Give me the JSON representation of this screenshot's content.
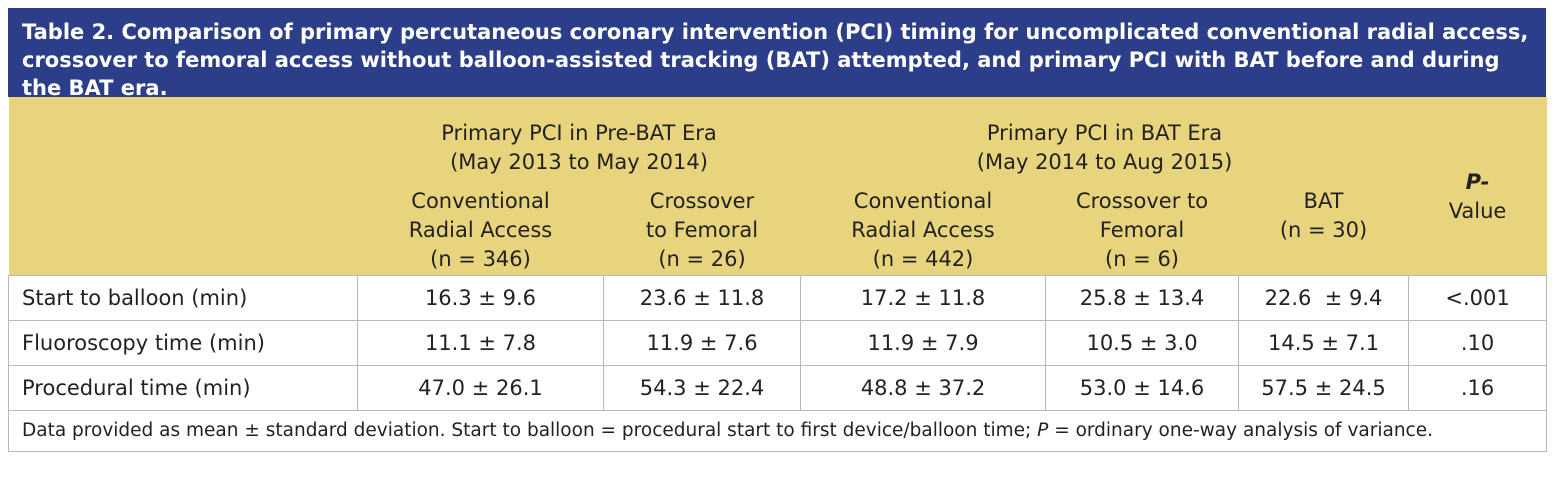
{
  "title": "Table 2. Comparison of primary percutaneous coronary intervention (PCI) timing for uncomplicated conventional radial access, crossover to femoral access without balloon-assisted tracking (BAT) attempted, and primary PCI with BAT before and during the BAT era.",
  "table": {
    "group_headers": [
      {
        "label": "Primary PCI in Pre-BAT Era",
        "dates": "(May 2013 to May 2014)"
      },
      {
        "label": "Primary PCI in BAT Era",
        "dates": "(May 2014 to Aug 2015)"
      }
    ],
    "columns": [
      [
        "Conventional",
        "Radial Access",
        "(n = 346)"
      ],
      [
        "Crossover",
        "to Femoral",
        "(n = 26)"
      ],
      [
        "Conventional",
        "Radial Access",
        "(n = 442)"
      ],
      [
        "Crossover to",
        "Femoral",
        "(n = 6)"
      ],
      [
        "BAT",
        "(n = 30)"
      ]
    ],
    "p_value_header": {
      "italic": "P-",
      "rest": "Value"
    },
    "rows": [
      [
        "Start to balloon (min)",
        "16.3 ± 9.6",
        "23.6 ± 11.8",
        "17.2 ± 11.8",
        "25.8 ± 13.4",
        "22.6  ± 9.4",
        "<.001"
      ],
      [
        "Fluoroscopy time (min)",
        "11.1 ± 7.8",
        "11.9 ± 7.6",
        "11.9 ± 7.9",
        "10.5 ± 3.0",
        "14.5 ± 7.1",
        ".10"
      ],
      [
        "Procedural time (min)",
        "47.0 ± 26.1",
        "54.3 ± 22.4",
        "48.8 ± 37.2",
        "53.0 ± 14.6",
        "57.5 ± 24.5",
        ".16"
      ]
    ],
    "footnote": [
      "Data provided as mean ± standard deviation. Start to balloon = procedural start to first device/balloon time; ",
      "P",
      " = ordinary one-way analysis of variance."
    ]
  }
}
